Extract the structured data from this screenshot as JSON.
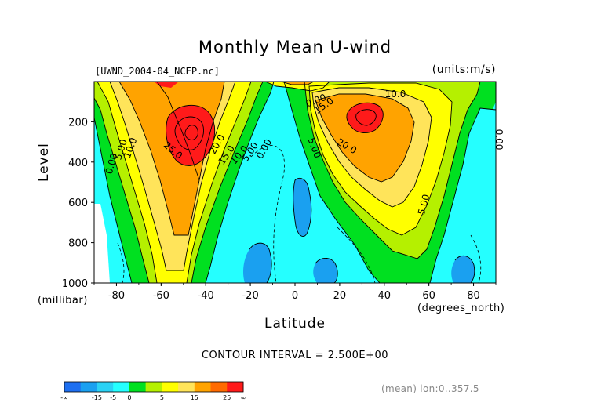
{
  "chart_data": {
    "type": "heatmap",
    "subtype": "filled-contour",
    "title": "Monthly Mean U-wind",
    "dataset_label": "[UWND_2004-04_NCEP.nc]",
    "units_label": "(units:m/s)",
    "xlabel": "Latitude",
    "x_unit_label": "(degrees_north)",
    "ylabel": "Level",
    "y_unit_label": "(millibar)",
    "xlim": [
      -90,
      90
    ],
    "ylim": [
      1000,
      0
    ],
    "x_ticks": [
      -80,
      -60,
      -40,
      -20,
      0,
      20,
      40,
      60,
      80
    ],
    "y_ticks": [
      200,
      400,
      600,
      800,
      1000
    ],
    "contour_interval_text": "CONTOUR INTERVAL = 2.500E+00",
    "footer_text": "(mean) lon:0..357.5",
    "contour_labels": [
      "10.0",
      "5.00",
      "0.00",
      "25.0",
      "20.0",
      "15.0",
      "10.0",
      "5.00",
      "0.00",
      "5.00",
      "10.0",
      "15.0",
      "20.0",
      "5.00",
      "0.00",
      "0.00"
    ],
    "jets": [
      {
        "lat": -50,
        "level": 250,
        "peak": 28
      },
      {
        "lat": 27,
        "level": 200,
        "peak": 27
      }
    ],
    "colorbar": {
      "tick_labels": [
        "-∞",
        "-15",
        "-5",
        "0",
        "5",
        "15",
        "25",
        "∞"
      ],
      "colors": [
        "#1e6ff0",
        "#1aa0f0",
        "#2bd2f5",
        "#25ffff",
        "#00e020",
        "#b5f000",
        "#ffff00",
        "#ffe45a",
        "#ffa300",
        "#ff6a00",
        "#ff1a1a"
      ]
    }
  }
}
